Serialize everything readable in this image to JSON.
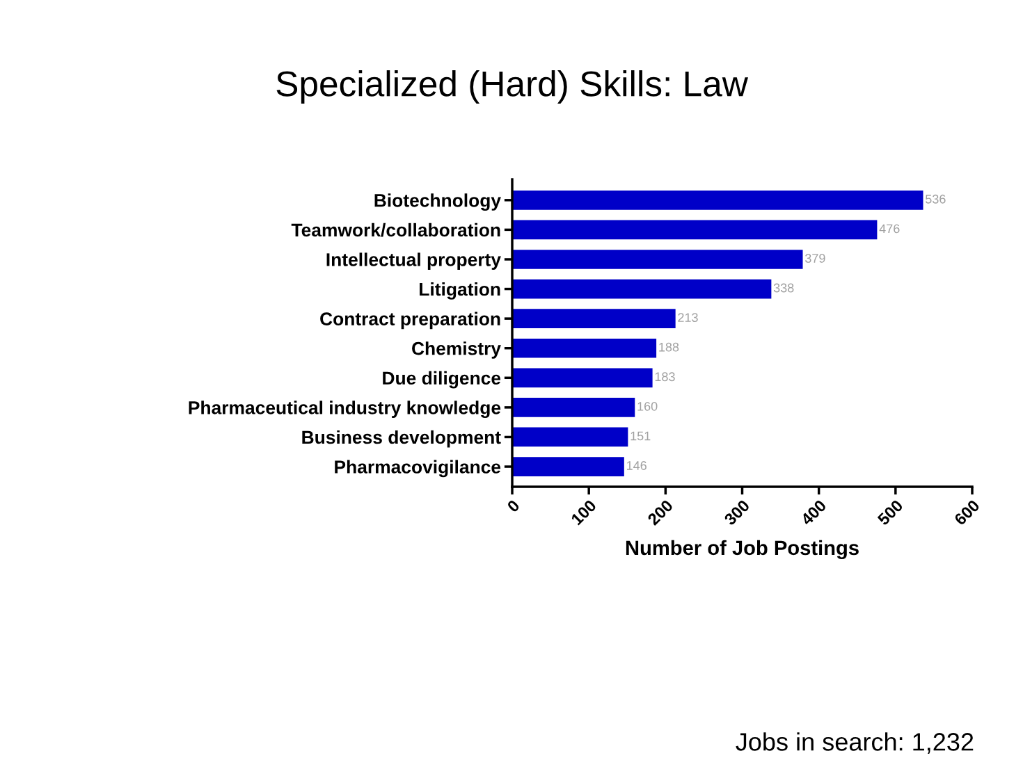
{
  "chart_data": {
    "type": "bar",
    "orientation": "horizontal",
    "title": "Specialized (Hard) Skills: Law",
    "xlabel": "Number of Job Postings",
    "categories": [
      "Biotechnology",
      "Teamwork/collaboration",
      "Intellectual property",
      "Litigation",
      "Contract preparation",
      "Chemistry",
      "Due diligence",
      "Pharmaceutical industry knowledge",
      "Business development",
      "Pharmacovigilance"
    ],
    "values": [
      536,
      476,
      379,
      338,
      213,
      188,
      183,
      160,
      151,
      146
    ],
    "color": "#0000c8",
    "xlim": [
      0,
      600
    ],
    "xticks": [
      0,
      100,
      200,
      300,
      400,
      500,
      600
    ],
    "data_labels": true,
    "grid": false,
    "annotations": [
      "Jobs in search: 1,232"
    ]
  }
}
